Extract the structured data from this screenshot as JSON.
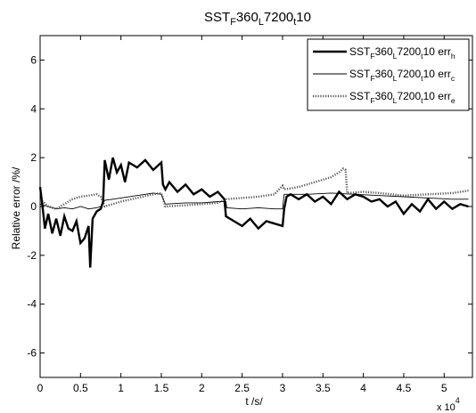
{
  "chart_data": {
    "type": "line",
    "title": {
      "main": "SST",
      "parts": [
        {
          "t": "F",
          "sub": true
        },
        {
          "t": "360",
          "sub": false
        },
        {
          "t": "L",
          "sub": true
        },
        {
          "t": "7200",
          "sub": false
        },
        {
          "t": "t",
          "sub": true
        },
        {
          "t": "10",
          "sub": false
        }
      ]
    },
    "xlabel": "t /s/",
    "ylabel": "Relative error /%/",
    "x_multiplier": "x 10",
    "x_multiplier_exponent": "4",
    "xlim": [
      0,
      5.35
    ],
    "ylim": [
      -7,
      7
    ],
    "xticks": [
      0,
      0.5,
      1,
      1.5,
      2,
      2.5,
      3,
      3.5,
      4,
      4.5,
      5
    ],
    "xtick_labels": [
      "0",
      "0.5",
      "1",
      "1.5",
      "2",
      "2.5",
      "3",
      "3.5",
      "4",
      "4.5",
      "5"
    ],
    "yticks": [
      -6,
      -4,
      -2,
      0,
      2,
      4,
      6
    ],
    "ytick_labels": [
      "-6",
      "-4",
      "-2",
      "0",
      "2",
      "4",
      "6"
    ],
    "grid": false,
    "legend_position": "top-right",
    "series": [
      {
        "name": "SST_F360_L7200_t10 err_h",
        "label_base": "SST",
        "label_parts": [
          {
            "t": "F",
            "sub": true
          },
          {
            "t": "360",
            "sub": false
          },
          {
            "t": "L",
            "sub": true
          },
          {
            "t": "7200",
            "sub": false
          },
          {
            "t": "t",
            "sub": true
          },
          {
            "t": "10 err",
            "sub": false
          },
          {
            "t": "h",
            "sub": true
          }
        ],
        "style": "thick",
        "x": [
          0,
          0.03,
          0.06,
          0.1,
          0.15,
          0.2,
          0.25,
          0.3,
          0.35,
          0.4,
          0.45,
          0.5,
          0.55,
          0.6,
          0.62,
          0.65,
          0.7,
          0.75,
          0.78,
          0.8,
          0.85,
          0.9,
          0.95,
          1.0,
          1.05,
          1.1,
          1.2,
          1.3,
          1.4,
          1.5,
          1.52,
          1.55,
          1.6,
          1.7,
          1.8,
          1.9,
          2.0,
          2.1,
          2.2,
          2.28,
          2.3,
          2.4,
          2.5,
          2.6,
          2.7,
          2.8,
          2.9,
          3.0,
          3.02,
          3.05,
          3.1,
          3.2,
          3.3,
          3.4,
          3.5,
          3.6,
          3.7,
          3.8,
          3.9,
          4.0,
          4.1,
          4.2,
          4.3,
          4.4,
          4.5,
          4.6,
          4.7,
          4.8,
          4.9,
          5.0,
          5.1,
          5.2,
          5.3
        ],
        "y": [
          0.8,
          0.0,
          -0.9,
          -0.3,
          -1.1,
          -0.5,
          -1.2,
          -0.4,
          -0.9,
          -1.0,
          -0.6,
          -1.5,
          -1.3,
          -0.8,
          -2.5,
          -0.5,
          -0.2,
          -0.1,
          0.2,
          1.9,
          1.1,
          2.0,
          1.4,
          1.7,
          1.0,
          1.8,
          1.6,
          1.9,
          1.5,
          1.8,
          0.9,
          0.7,
          1.0,
          0.6,
          0.9,
          0.5,
          0.7,
          0.4,
          0.6,
          0.3,
          -0.4,
          -0.6,
          -0.8,
          -0.5,
          -0.9,
          -0.6,
          -0.7,
          -0.8,
          -0.1,
          0.4,
          0.5,
          0.3,
          0.5,
          0.2,
          0.4,
          0.1,
          0.6,
          0.3,
          0.5,
          0.4,
          0.2,
          0.3,
          0.0,
          0.2,
          -0.3,
          0.1,
          -0.2,
          0.3,
          -0.1,
          0.2,
          -0.1,
          0.1,
          0.0
        ]
      },
      {
        "name": "SST_F360_L7200_t10 err_c",
        "label_base": "SST",
        "label_parts": [
          {
            "t": "F",
            "sub": true
          },
          {
            "t": "360",
            "sub": false
          },
          {
            "t": "L",
            "sub": true
          },
          {
            "t": "7200",
            "sub": false
          },
          {
            "t": "t",
            "sub": true
          },
          {
            "t": "10 err",
            "sub": false
          },
          {
            "t": "c",
            "sub": true
          }
        ],
        "style": "thin",
        "x": [
          0,
          0.1,
          0.2,
          0.3,
          0.4,
          0.5,
          0.6,
          0.7,
          0.75,
          0.8,
          1.0,
          1.2,
          1.4,
          1.5,
          1.55,
          1.8,
          2.0,
          2.2,
          2.3,
          2.31,
          2.5,
          2.7,
          2.9,
          3.0,
          3.02,
          3.3,
          3.6,
          3.9,
          4.2,
          4.5,
          4.8,
          5.1,
          5.3
        ],
        "y": [
          0.1,
          0.0,
          -0.1,
          -0.05,
          -0.1,
          0.0,
          -0.1,
          -0.05,
          0.0,
          0.25,
          0.35,
          0.45,
          0.55,
          0.5,
          0.1,
          0.15,
          0.15,
          0.2,
          0.2,
          -0.05,
          -0.1,
          -0.05,
          -0.1,
          -0.1,
          0.5,
          0.5,
          0.55,
          0.5,
          0.45,
          0.4,
          0.35,
          0.3,
          0.3
        ]
      },
      {
        "name": "SST_F360_L7200_t10 err_e",
        "label_base": "SST",
        "label_parts": [
          {
            "t": "F",
            "sub": true
          },
          {
            "t": "360",
            "sub": false
          },
          {
            "t": "L",
            "sub": true
          },
          {
            "t": "7200",
            "sub": false
          },
          {
            "t": "t",
            "sub": true
          },
          {
            "t": "10 err",
            "sub": false
          },
          {
            "t": "e",
            "sub": true
          }
        ],
        "style": "dotted",
        "x": [
          0,
          0.1,
          0.2,
          0.3,
          0.4,
          0.5,
          0.6,
          0.7,
          0.75,
          0.8,
          1.0,
          1.2,
          1.4,
          1.5,
          1.55,
          1.8,
          2.0,
          2.2,
          2.3,
          2.5,
          2.7,
          2.9,
          3.0,
          3.02,
          3.2,
          3.4,
          3.6,
          3.7,
          3.75,
          3.78,
          3.8,
          4.0,
          4.2,
          4.5,
          4.8,
          5.1,
          5.3
        ],
        "y": [
          0.3,
          0.0,
          -0.1,
          0.1,
          0.3,
          0.4,
          0.45,
          0.5,
          0.4,
          0.0,
          0.2,
          0.35,
          0.5,
          0.55,
          0.0,
          0.05,
          0.1,
          0.15,
          0.3,
          0.35,
          0.4,
          0.5,
          0.85,
          0.7,
          0.8,
          1.0,
          1.2,
          1.4,
          1.55,
          1.5,
          0.55,
          0.6,
          0.55,
          0.45,
          0.5,
          0.55,
          0.65
        ]
      }
    ]
  }
}
